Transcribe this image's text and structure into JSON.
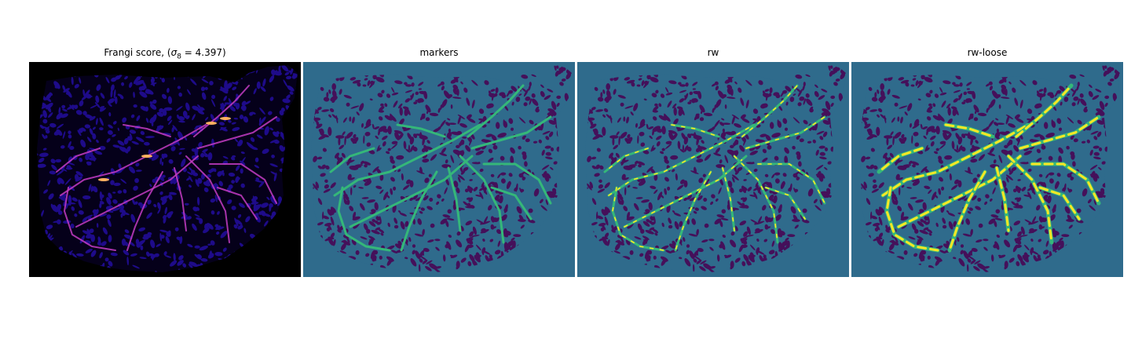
{
  "panels": [
    {
      "title_prefix": "Frangi score, (",
      "title_math": "σ",
      "title_sub": "8",
      "title_suffix": " = 4.397)",
      "kind": "frangi",
      "background": "#000000",
      "tissue": "#1e0b8a",
      "veins": "#c43cc4",
      "hot": "#ffb060"
    },
    {
      "title": "markers",
      "kind": "markers",
      "background": "#2f6b8c",
      "tissue": "#45105a",
      "veins": "#35b779"
    },
    {
      "title": "rw",
      "kind": "rw",
      "background": "#2f6b8c",
      "tissue": "#45105a",
      "veins": "#35b779",
      "highlight": "#fde725"
    },
    {
      "title": "rw-loose",
      "kind": "rw-loose",
      "background": "#2f6b8c",
      "tissue": "#45105a",
      "veins": "#35b779",
      "highlight": "#fde725"
    }
  ]
}
